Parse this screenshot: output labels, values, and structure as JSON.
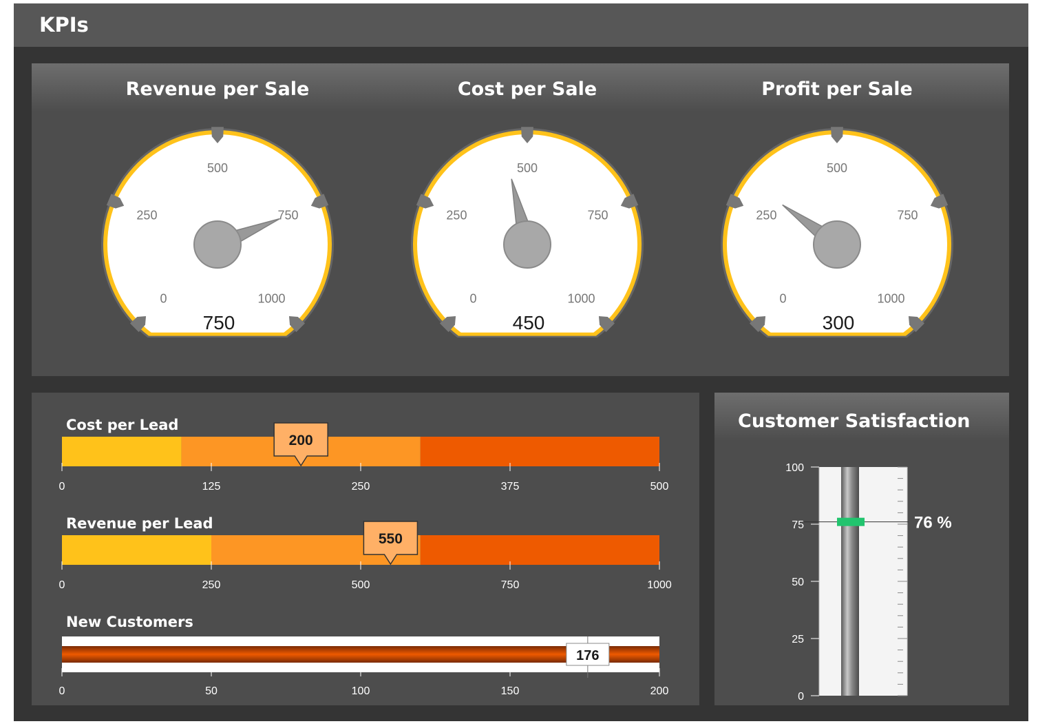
{
  "header": {
    "title": "KPIs"
  },
  "gauges": [
    {
      "title": "Revenue per Sale",
      "value": 750,
      "value_label": "750",
      "ticks": [
        "0",
        "250",
        "500",
        "750",
        "1000"
      ]
    },
    {
      "title": "Cost per Sale",
      "value": 450,
      "value_label": "450",
      "ticks": [
        "0",
        "250",
        "500",
        "750",
        "1000"
      ]
    },
    {
      "title": "Profit per Sale",
      "value": 300,
      "value_label": "300",
      "ticks": [
        "0",
        "250",
        "500",
        "750",
        "1000"
      ]
    }
  ],
  "bullets": [
    {
      "title": "Cost per Lead",
      "value": 200,
      "value_label": "200",
      "max": 500,
      "bands": [
        100,
        300,
        500
      ],
      "ticks": [
        "0",
        "125",
        "250",
        "375",
        "500"
      ]
    },
    {
      "title": "Revenue per Lead",
      "value": 550,
      "value_label": "550",
      "max": 1000,
      "bands": [
        250,
        600,
        1000
      ],
      "ticks": [
        "0",
        "250",
        "500",
        "750",
        "1000"
      ]
    },
    {
      "title": "New Customers",
      "value": 176,
      "value_label": "176",
      "max": 200,
      "ticks": [
        "0",
        "50",
        "100",
        "150",
        "200"
      ]
    }
  ],
  "satisfaction": {
    "title": "Customer Satisfaction",
    "value": 76,
    "value_label": "76 %",
    "ticks": [
      "100",
      "75",
      "50",
      "25",
      "0"
    ]
  },
  "colors": {
    "gauge_ring": "#ffc21a",
    "band_low": "#ffc21a",
    "band_mid": "#fd9624",
    "band_high": "#ee5a00",
    "marker": "#22c46e"
  },
  "chart_data": [
    {
      "type": "gauge",
      "title": "Revenue per Sale",
      "value": 750,
      "range": [
        0,
        1000
      ]
    },
    {
      "type": "gauge",
      "title": "Cost per Sale",
      "value": 450,
      "range": [
        0,
        1000
      ]
    },
    {
      "type": "gauge",
      "title": "Profit per Sale",
      "value": 300,
      "range": [
        0,
        1000
      ]
    },
    {
      "type": "bar",
      "title": "Cost per Lead",
      "value": 200,
      "range": [
        0,
        500
      ],
      "bands": [
        100,
        300,
        500
      ]
    },
    {
      "type": "bar",
      "title": "Revenue per Lead",
      "value": 550,
      "range": [
        0,
        1000
      ],
      "bands": [
        250,
        600,
        1000
      ]
    },
    {
      "type": "bar",
      "title": "New Customers",
      "value": 176,
      "range": [
        0,
        200
      ]
    },
    {
      "type": "gauge",
      "title": "Customer Satisfaction",
      "value": 76,
      "range": [
        0,
        100
      ]
    }
  ]
}
